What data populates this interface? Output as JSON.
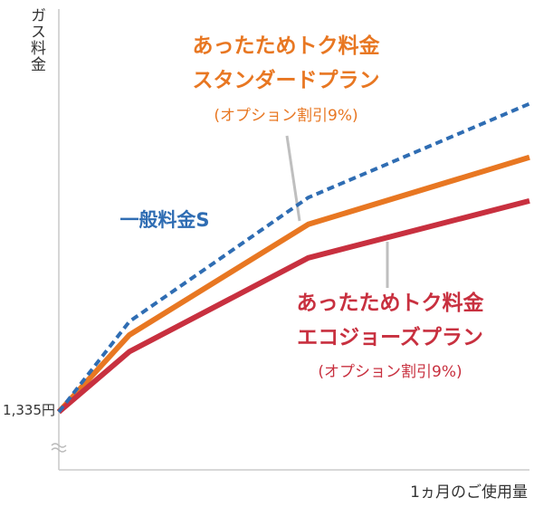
{
  "chart_data": {
    "type": "line",
    "xlabel": "1ヵ月のご使用量",
    "ylabel": "ガス料金",
    "y_start_label": "1,335円",
    "axis_break": true,
    "grid": false,
    "series": [
      {
        "name": "一般料金S",
        "color": "#2f6db3",
        "style": "dashed",
        "label_lines": [
          "一般料金S"
        ],
        "points": [
          [
            0,
            0
          ],
          [
            0.15,
            0.27
          ],
          [
            0.53,
            0.64
          ],
          [
            1.0,
            0.92
          ]
        ]
      },
      {
        "name": "あったためトク料金 スタンダードプラン (オプション割引9%)",
        "color": "#e87722",
        "style": "solid",
        "label_lines": [
          "あったためトク料金",
          "スタンダードプラン",
          "(オプション割引9%)"
        ],
        "points": [
          [
            0,
            0
          ],
          [
            0.15,
            0.23
          ],
          [
            0.53,
            0.56
          ],
          [
            1.0,
            0.76
          ]
        ]
      },
      {
        "name": "あったためトク料金 エコジョーズプラン (オプション割引9%)",
        "color": "#c8303f",
        "style": "solid",
        "label_lines": [
          "あったためトク料金",
          "エコジョーズプラン",
          "(オプション割引9%)"
        ],
        "points": [
          [
            0,
            0
          ],
          [
            0.15,
            0.18
          ],
          [
            0.53,
            0.46
          ],
          [
            1.0,
            0.63
          ]
        ]
      }
    ]
  }
}
